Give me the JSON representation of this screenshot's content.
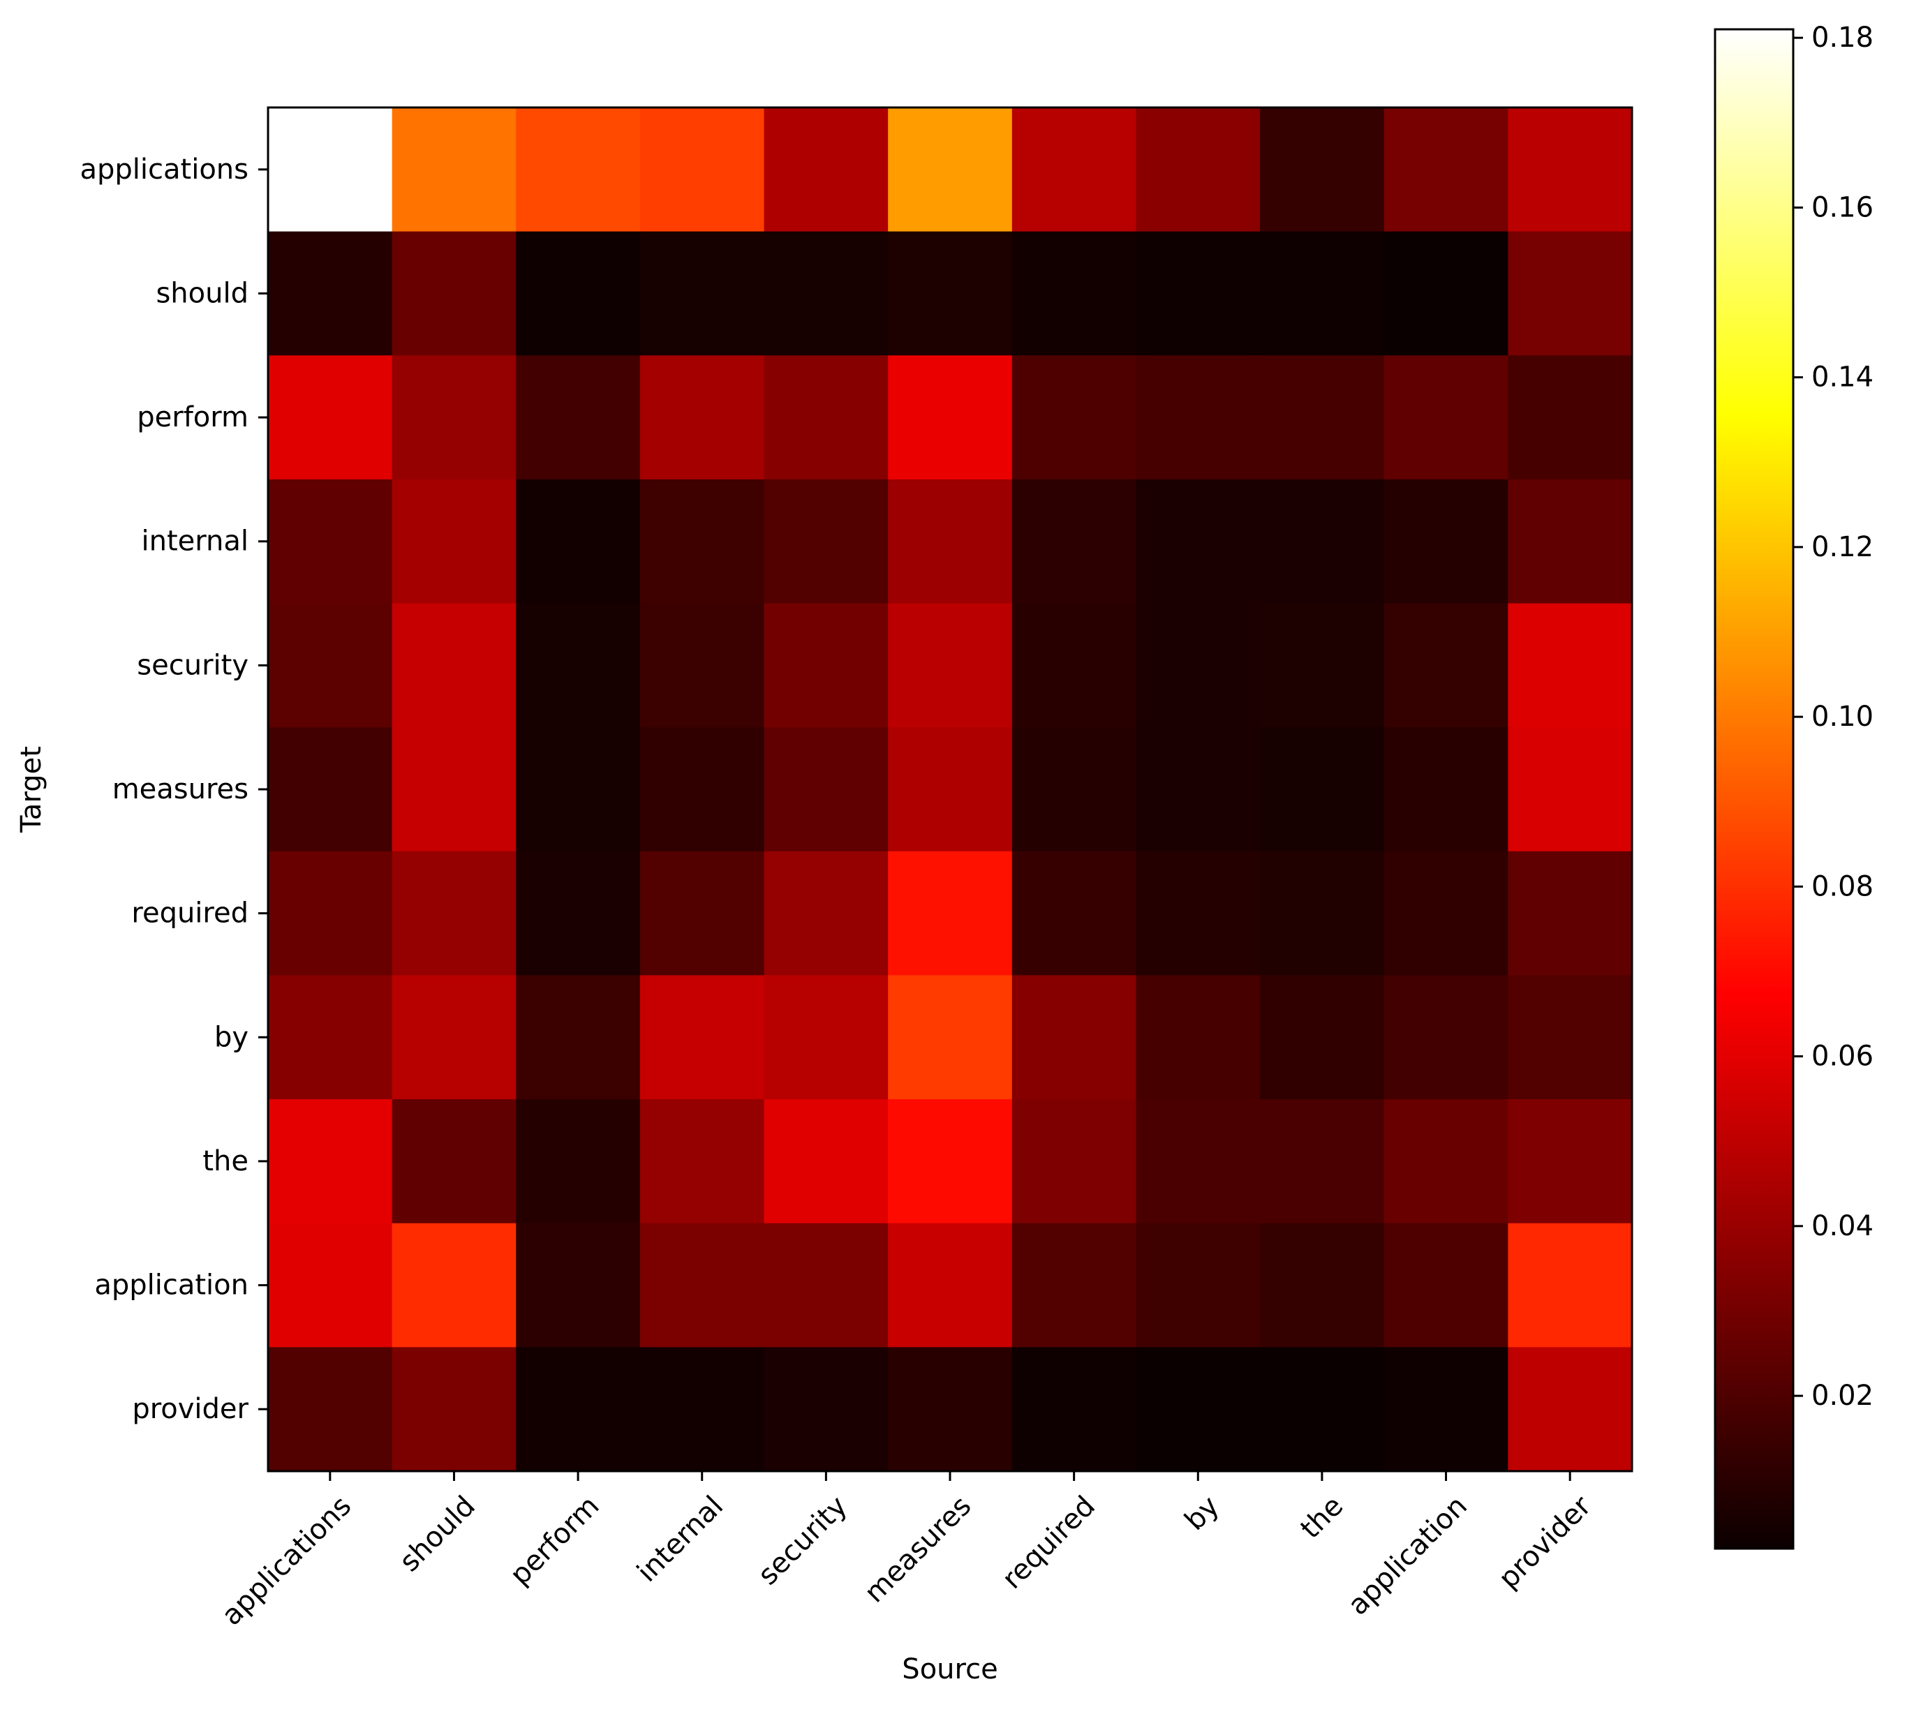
{
  "chart_data": {
    "type": "heatmap",
    "title": "",
    "xlabel": "Source",
    "ylabel": "Target",
    "x_labels": [
      "applications",
      "should",
      "perform",
      "internal",
      "security",
      "measures",
      "required",
      "by",
      "the",
      "application",
      "provider"
    ],
    "y_labels": [
      "applications",
      "should",
      "perform",
      "internal",
      "security",
      "measures",
      "required",
      "by",
      "the",
      "application",
      "provider"
    ],
    "colormap": "hot",
    "value_range": [
      0.002,
      0.181
    ],
    "colorbar_ticks": [
      0.02,
      0.04,
      0.06,
      0.08,
      0.1,
      0.12,
      0.14,
      0.16,
      0.18
    ],
    "colorbar_tick_labels": [
      "0.02",
      "0.04",
      "0.06",
      "0.08",
      "0.10",
      "0.12",
      "0.14",
      "0.16",
      "0.18"
    ],
    "values": [
      [
        0.181,
        0.098,
        0.087,
        0.084,
        0.046,
        0.109,
        0.048,
        0.036,
        0.013,
        0.031,
        0.049
      ],
      [
        0.009,
        0.027,
        0.003,
        0.005,
        0.005,
        0.007,
        0.004,
        0.003,
        0.003,
        0.002,
        0.031
      ],
      [
        0.059,
        0.039,
        0.017,
        0.043,
        0.035,
        0.062,
        0.02,
        0.018,
        0.018,
        0.025,
        0.018
      ],
      [
        0.025,
        0.043,
        0.004,
        0.016,
        0.021,
        0.041,
        0.011,
        0.006,
        0.006,
        0.009,
        0.025
      ],
      [
        0.024,
        0.052,
        0.005,
        0.015,
        0.03,
        0.049,
        0.01,
        0.006,
        0.007,
        0.013,
        0.058
      ],
      [
        0.017,
        0.052,
        0.005,
        0.012,
        0.025,
        0.046,
        0.009,
        0.006,
        0.005,
        0.01,
        0.057
      ],
      [
        0.027,
        0.039,
        0.006,
        0.021,
        0.039,
        0.072,
        0.014,
        0.009,
        0.008,
        0.012,
        0.025
      ],
      [
        0.035,
        0.048,
        0.015,
        0.052,
        0.048,
        0.083,
        0.035,
        0.018,
        0.012,
        0.017,
        0.021
      ],
      [
        0.06,
        0.025,
        0.009,
        0.039,
        0.059,
        0.07,
        0.033,
        0.019,
        0.019,
        0.027,
        0.033
      ],
      [
        0.059,
        0.079,
        0.011,
        0.032,
        0.032,
        0.053,
        0.021,
        0.016,
        0.013,
        0.02,
        0.078
      ],
      [
        0.021,
        0.032,
        0.004,
        0.004,
        0.006,
        0.01,
        0.003,
        0.002,
        0.002,
        0.003,
        0.05
      ]
    ]
  }
}
